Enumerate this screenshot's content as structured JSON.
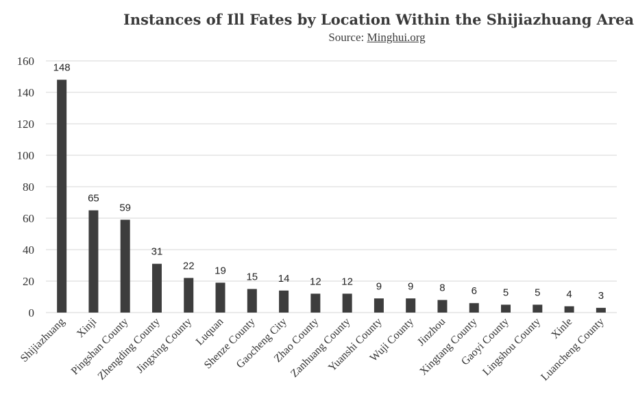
{
  "chart_data": {
    "type": "bar",
    "title": "Instances of Ill Fates by Location Within the Shijiazhuang Area",
    "subtitle_prefix": "Source: ",
    "subtitle_link": "Minghui.org",
    "xlabel": "",
    "ylabel": "",
    "ylim": [
      0,
      160
    ],
    "yticks": [
      0,
      20,
      40,
      60,
      80,
      100,
      120,
      140,
      160
    ],
    "grid": true,
    "legend": "none",
    "categories": [
      "Shijiazhuang",
      "Xinji",
      "Pingshan County",
      "Zhengding County",
      "Jingxing County",
      "Luquan",
      "Shenze County",
      "Gaocheng City",
      "Zhao County",
      "Zanhuang County",
      "Yuanshi County",
      "Wuji County",
      "Jinzhou",
      "Xingtang County",
      "Gaoyi County",
      "Lingshou County",
      "Xinle",
      "Luancheng County"
    ],
    "values": [
      148,
      65,
      59,
      31,
      22,
      19,
      15,
      14,
      12,
      12,
      9,
      9,
      8,
      6,
      5,
      5,
      4,
      3
    ],
    "bar_color": "#3d3d3d",
    "grid_color": "#d6d6d6"
  }
}
